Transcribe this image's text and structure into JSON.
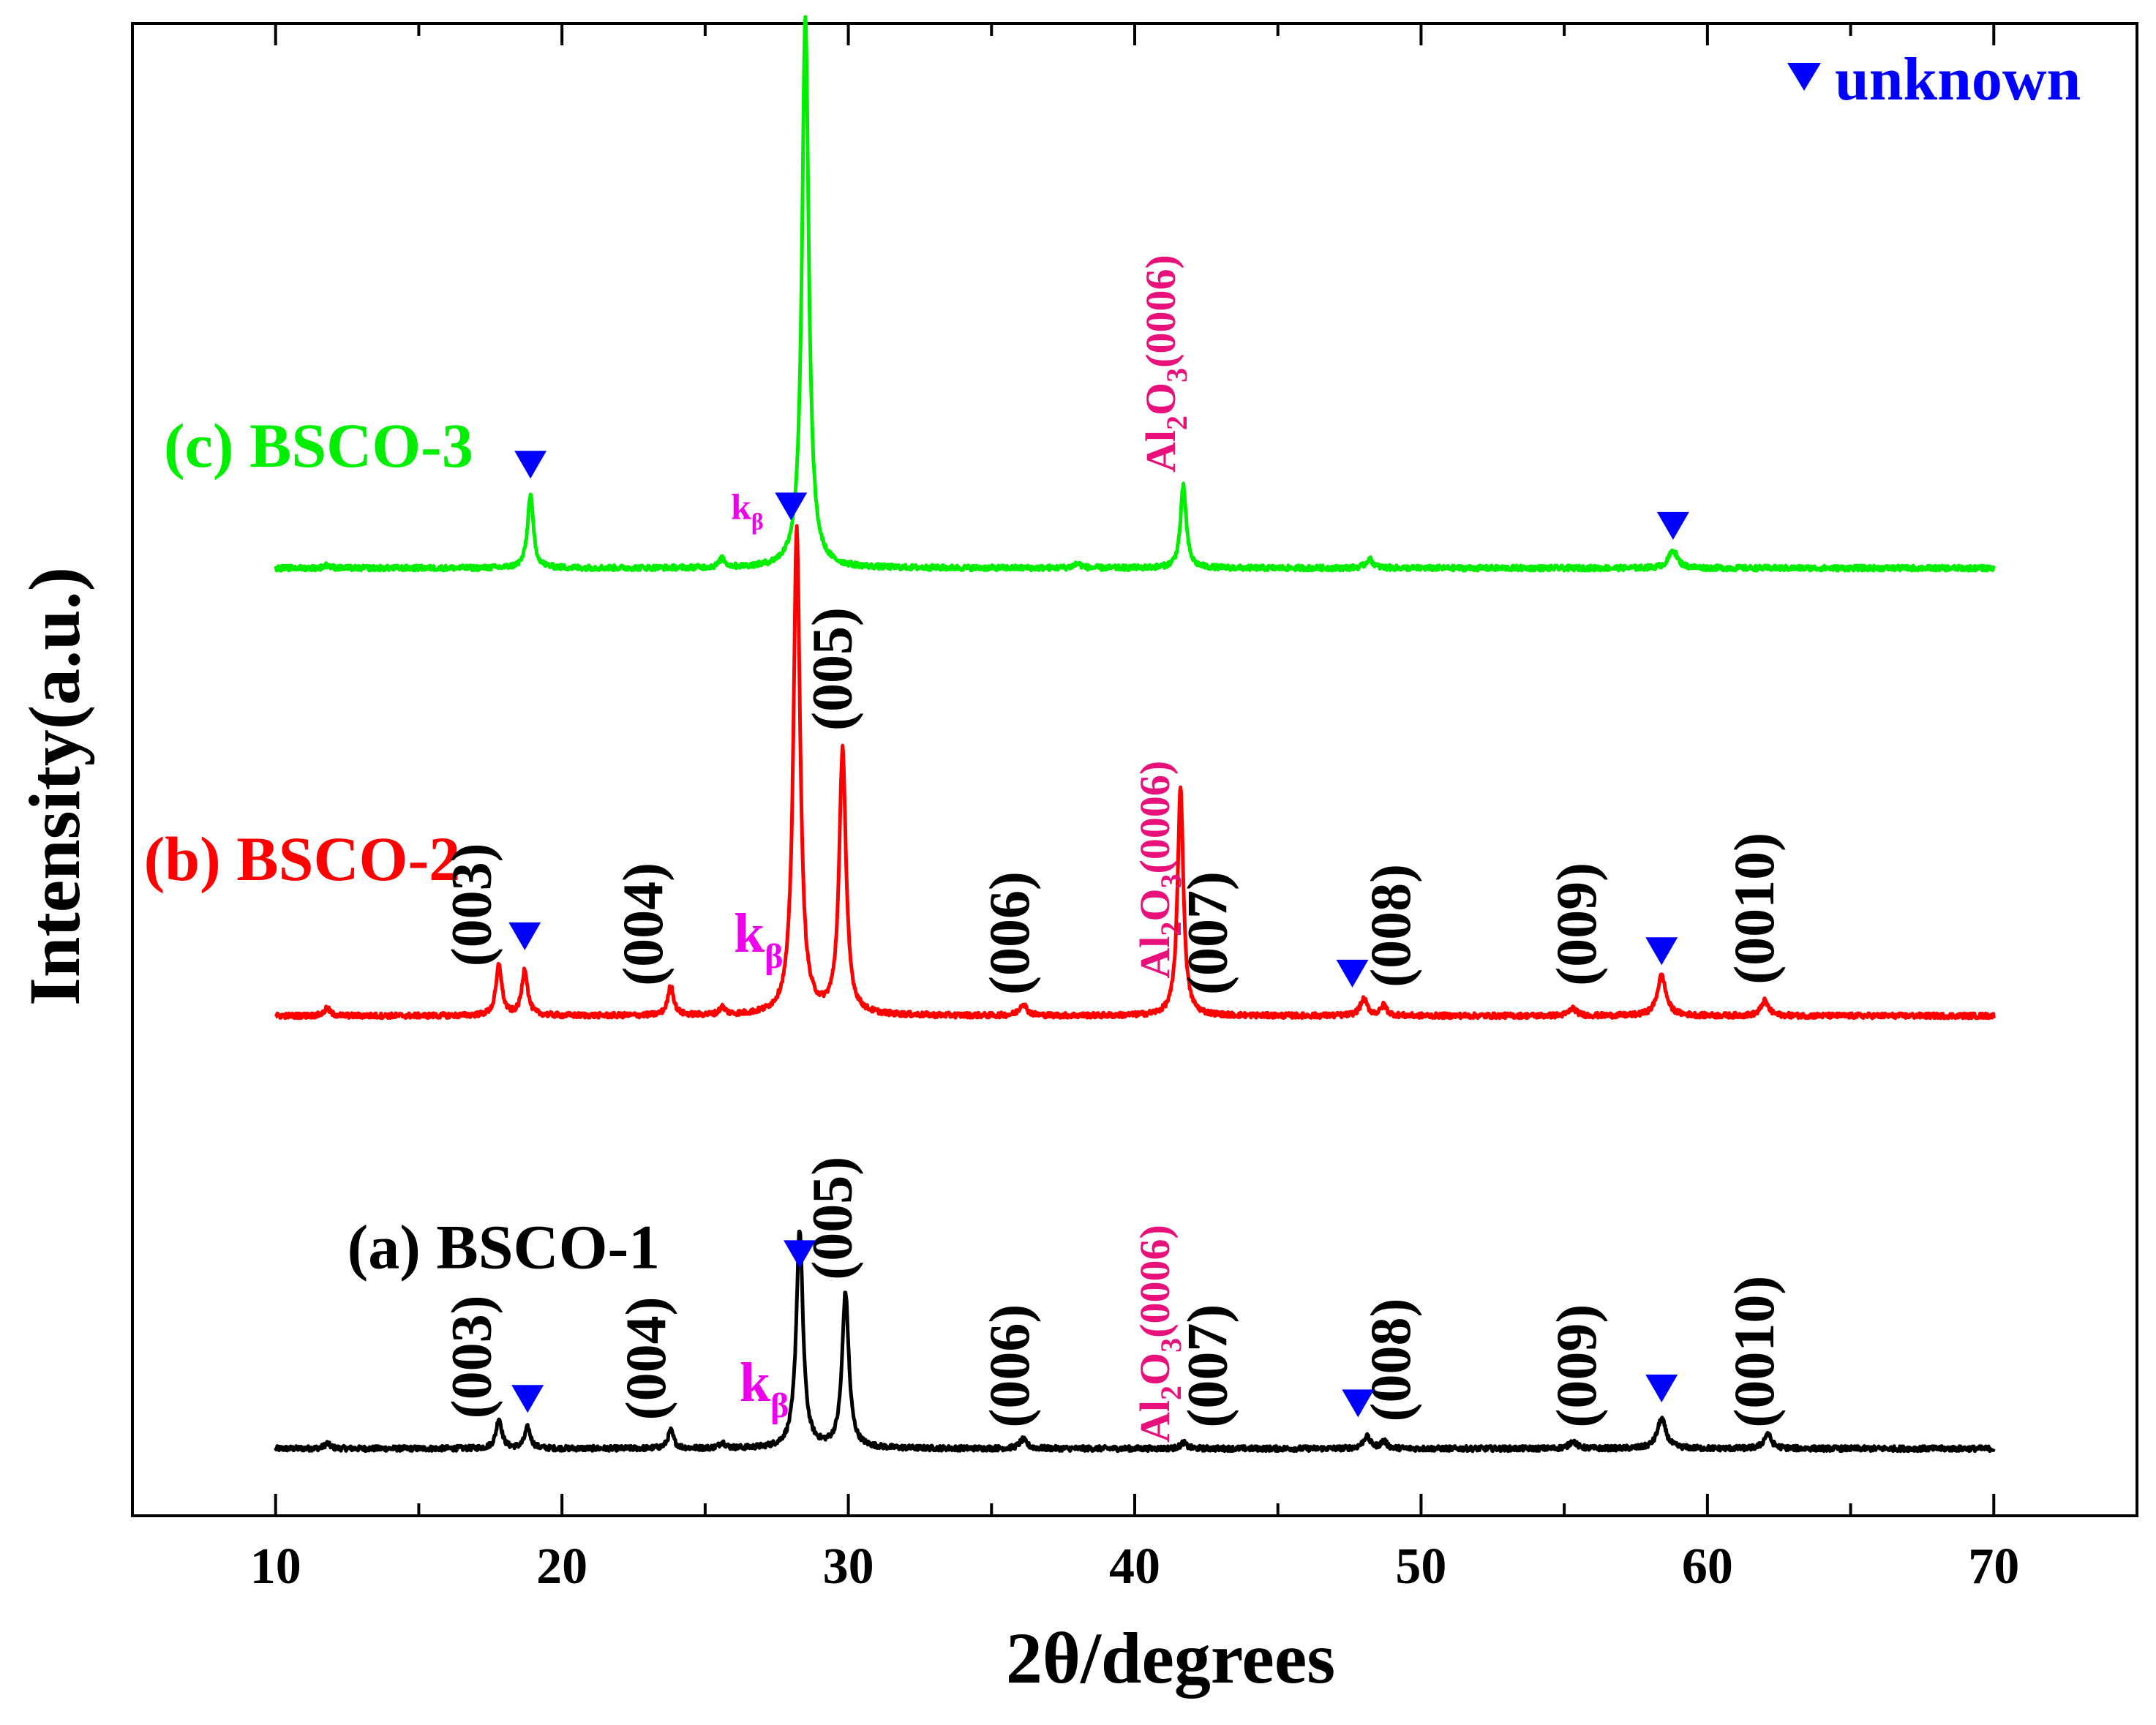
{
  "chart_data": {
    "type": "line",
    "title": "",
    "xlabel": "2θ/degrees",
    "ylabel": "Intensity(a.u.)",
    "xlim": [
      5,
      75
    ],
    "ylim": [
      0,
      100
    ],
    "grid": false,
    "legend": {
      "symbol": "▼",
      "label": "unknown",
      "position": "top-right"
    },
    "x_ticks": [
      10,
      20,
      30,
      40,
      50,
      60,
      70
    ],
    "x_minor_ticks": [
      15,
      25,
      35,
      45,
      55,
      65
    ],
    "colors": {
      "a": "#000000",
      "b": "#ff0000",
      "c": "#00ee00",
      "marker": "#0000ff",
      "al2o3": "#e8107a",
      "kbeta": "#ee00ee"
    },
    "series": [
      {
        "id": "a",
        "name": "(a) BSCO-1",
        "color": "#000000",
        "baseline": 4.5,
        "peaks": [
          {
            "x": 11.8,
            "h": 0.35,
            "w": 0.12
          },
          {
            "x": 17.8,
            "h": 2.0,
            "w": 0.12
          },
          {
            "x": 18.8,
            "h": 1.4,
            "w": 0.12
          },
          {
            "x": 23.8,
            "h": 1.2,
            "w": 0.12
          },
          {
            "x": 25.6,
            "h": 0.4,
            "w": 0.12
          },
          {
            "x": 28.3,
            "h": 14.6,
            "w": 0.14
          },
          {
            "x": 29.9,
            "h": 10.4,
            "w": 0.14
          },
          {
            "x": 36.1,
            "h": 0.6,
            "w": 0.15
          },
          {
            "x": 41.7,
            "h": 0.4,
            "w": 0.12
          },
          {
            "x": 48.1,
            "h": 0.8,
            "w": 0.15
          },
          {
            "x": 48.7,
            "h": 0.5,
            "w": 0.12
          },
          {
            "x": 55.3,
            "h": 0.5,
            "w": 0.15
          },
          {
            "x": 58.4,
            "h": 2.0,
            "w": 0.18
          },
          {
            "x": 62.1,
            "h": 1.0,
            "w": 0.15
          }
        ],
        "hkl_labels": [
          {
            "text": "(003)",
            "x": 17.5,
            "y": 6.5
          },
          {
            "text": "(004)",
            "x": 23.6,
            "y": 6.4
          },
          {
            "text": "(005)",
            "x": 30.1,
            "y": 15.8
          },
          {
            "text": "(006)",
            "x": 36.3,
            "y": 5.9
          },
          {
            "text": "(007)",
            "x": 43.2,
            "y": 5.9
          },
          {
            "text": "(008)",
            "x": 49.6,
            "y": 6.3
          },
          {
            "text": "(009)",
            "x": 56.1,
            "y": 5.9
          },
          {
            "text": "(0010)",
            "x": 62.3,
            "y": 5.9
          }
        ],
        "al2o3_label": {
          "text": "Al",
          "sub1": "2",
          "mid": "O",
          "sub2": "3",
          "tail": "(0006)",
          "x": 41.2,
          "y": 4.9
        },
        "kbeta_label": {
          "text": "k",
          "sub": "β",
          "x": 26.2,
          "y": 7.7
        },
        "unknown_markers": [
          18.8,
          28.3,
          47.8,
          58.4
        ],
        "marker_y": [
          6.9,
          16.6,
          6.6,
          7.6
        ],
        "name_pos": {
          "x": 12.5,
          "y": 16.6
        }
      },
      {
        "id": "b",
        "name": "(b) BSCO-2",
        "color": "#ff0000",
        "baseline": 33.5,
        "peaks": [
          {
            "x": 11.8,
            "h": 0.5,
            "w": 0.12
          },
          {
            "x": 17.8,
            "h": 3.4,
            "w": 0.12
          },
          {
            "x": 18.7,
            "h": 3.1,
            "w": 0.12
          },
          {
            "x": 23.8,
            "h": 2.0,
            "w": 0.12
          },
          {
            "x": 25.6,
            "h": 0.5,
            "w": 0.12
          },
          {
            "x": 28.2,
            "h": 32.6,
            "w": 0.14
          },
          {
            "x": 29.8,
            "h": 17.8,
            "w": 0.14
          },
          {
            "x": 36.1,
            "h": 0.8,
            "w": 0.15
          },
          {
            "x": 41.6,
            "h": 15.4,
            "w": 0.12
          },
          {
            "x": 48.0,
            "h": 1.1,
            "w": 0.15
          },
          {
            "x": 48.7,
            "h": 0.7,
            "w": 0.12
          },
          {
            "x": 55.3,
            "h": 0.5,
            "w": 0.15
          },
          {
            "x": 58.4,
            "h": 2.7,
            "w": 0.18
          },
          {
            "x": 62.0,
            "h": 1.0,
            "w": 0.15
          }
        ],
        "hkl_labels": [
          {
            "text": "(003)",
            "x": 17.5,
            "y": 36.8
          },
          {
            "text": "(004)",
            "x": 23.5,
            "y": 35.5
          },
          {
            "text": "(005)",
            "x": 30.1,
            "y": 52.6
          },
          {
            "text": "(006)",
            "x": 36.3,
            "y": 34.9
          },
          {
            "text": "(007)",
            "x": 43.2,
            "y": 34.9
          },
          {
            "text": "(008)",
            "x": 49.6,
            "y": 35.4
          },
          {
            "text": "(009)",
            "x": 56.1,
            "y": 35.5
          },
          {
            "text": "(0010)",
            "x": 62.3,
            "y": 35.6
          }
        ],
        "al2o3_label": {
          "text": "Al",
          "sub1": "2",
          "mid": "O",
          "sub2": "3",
          "tail": "(0006)",
          "x": 41.2,
          "y": 36.0
        },
        "kbeta_label": {
          "text": "k",
          "sub": "β",
          "x": 26.0,
          "y": 37.8
        },
        "unknown_markers": [
          18.7,
          28.0,
          47.6,
          58.4
        ],
        "marker_y": [
          37.9,
          66.7,
          35.4,
          36.9
        ],
        "name_pos": {
          "x": 5.4,
          "y": 42.6
        }
      },
      {
        "id": "c",
        "name": "(c) BSCO-3",
        "color": "#00ee00",
        "baseline": 63.5,
        "peaks": [
          {
            "x": 11.8,
            "h": 0.2,
            "w": 0.12
          },
          {
            "x": 18.9,
            "h": 4.9,
            "w": 0.12
          },
          {
            "x": 25.6,
            "h": 0.6,
            "w": 0.12
          },
          {
            "x": 28.5,
            "h": 37.0,
            "w": 0.14
          },
          {
            "x": 38.0,
            "h": 0.3,
            "w": 0.15
          },
          {
            "x": 41.7,
            "h": 5.5,
            "w": 0.12
          },
          {
            "x": 48.2,
            "h": 0.6,
            "w": 0.15
          },
          {
            "x": 58.8,
            "h": 1.2,
            "w": 0.18
          }
        ],
        "hkl_labels": [],
        "al2o3_label": {
          "text": "Al",
          "sub1": "2",
          "mid": "O",
          "sub2": "3",
          "tail": "(0006)",
          "x": 41.4,
          "y": 69.9
        },
        "kbeta_label": {
          "text": "k",
          "sub": "β",
          "x": 25.9,
          "y": 66.8
        },
        "unknown_markers": [
          18.9,
          28.5,
          58.8
        ],
        "marker_y": [
          69.5,
          101.7,
          65.4
        ],
        "name_pos": {
          "x": 6.1,
          "y": 70.3
        }
      }
    ]
  }
}
